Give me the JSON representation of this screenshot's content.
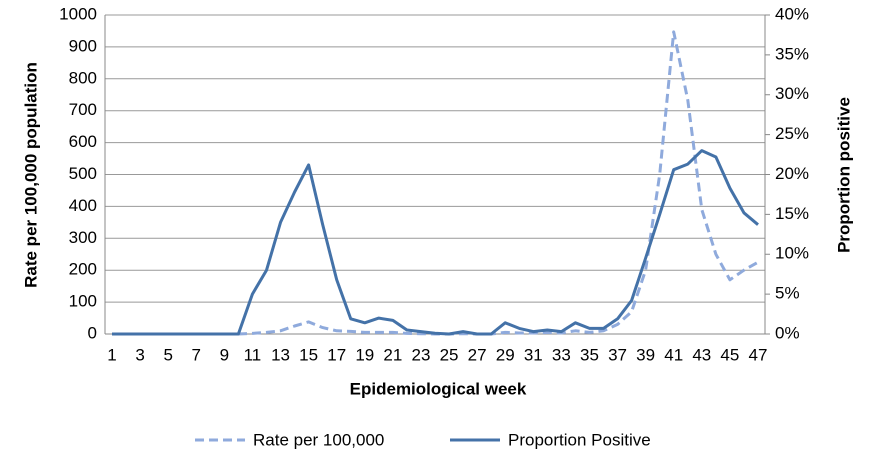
{
  "chart_data": {
    "type": "line",
    "x_label": "Epidemiological week",
    "y_label": "Rate per 100,000 population",
    "y2_label": "Proportion positive",
    "categories": [
      1,
      null,
      3,
      null,
      5,
      null,
      7,
      null,
      9,
      null,
      11,
      null,
      13,
      null,
      15,
      null,
      17,
      null,
      19,
      null,
      21,
      null,
      23,
      null,
      25,
      null,
      27,
      null,
      29,
      null,
      31,
      null,
      33,
      null,
      35,
      null,
      37,
      null,
      39,
      null,
      41,
      null,
      43,
      null,
      45,
      null,
      47
    ],
    "series": [
      {
        "name": "Rate per 100,000",
        "color": "#8faadc",
        "dash": true,
        "values": [
          0,
          0,
          0,
          0,
          0,
          0,
          0,
          0,
          0,
          0,
          2,
          5,
          10,
          25,
          38,
          20,
          10,
          8,
          5,
          5,
          5,
          2,
          1,
          0,
          0,
          1,
          0,
          0,
          5,
          3,
          3,
          5,
          3,
          10,
          5,
          10,
          30,
          70,
          200,
          500,
          947,
          733,
          390,
          250,
          170,
          200,
          225
        ]
      },
      {
        "name": "Proportion Positive",
        "color": "#4472a8",
        "dash": false,
        "axis": "y2",
        "values": [
          0,
          0,
          0,
          0,
          0,
          0,
          0,
          0,
          0,
          0,
          5,
          8,
          14,
          17.8,
          21.2,
          13.7,
          6.8,
          1.9,
          1.4,
          2,
          1.7,
          0.5,
          0.3,
          0.1,
          0,
          0.3,
          0,
          0,
          1.4,
          0.7,
          0.3,
          0.5,
          0.3,
          1.4,
          0.7,
          0.7,
          1.9,
          4.2,
          9.5,
          15,
          20.6,
          21.3,
          23,
          22.2,
          18.3,
          15.2,
          13.7
        ]
      }
    ],
    "ylim": [
      0,
      1000
    ],
    "yticks": [
      0,
      100,
      200,
      300,
      400,
      500,
      600,
      700,
      800,
      900,
      1000
    ],
    "y2lim": [
      0,
      40
    ],
    "y2ticks": [
      {
        "value": 0,
        "label": "0%"
      },
      {
        "value": 5,
        "label": "5%"
      },
      {
        "value": 10,
        "label": "10%"
      },
      {
        "value": 15,
        "label": "15%"
      },
      {
        "value": 20,
        "label": "20%"
      },
      {
        "value": 25,
        "label": "25%"
      },
      {
        "value": 30,
        "label": "30%"
      },
      {
        "value": 35,
        "label": "35%"
      },
      {
        "value": 40,
        "label": "40%"
      }
    ],
    "grid": true,
    "legend": "bottom"
  }
}
